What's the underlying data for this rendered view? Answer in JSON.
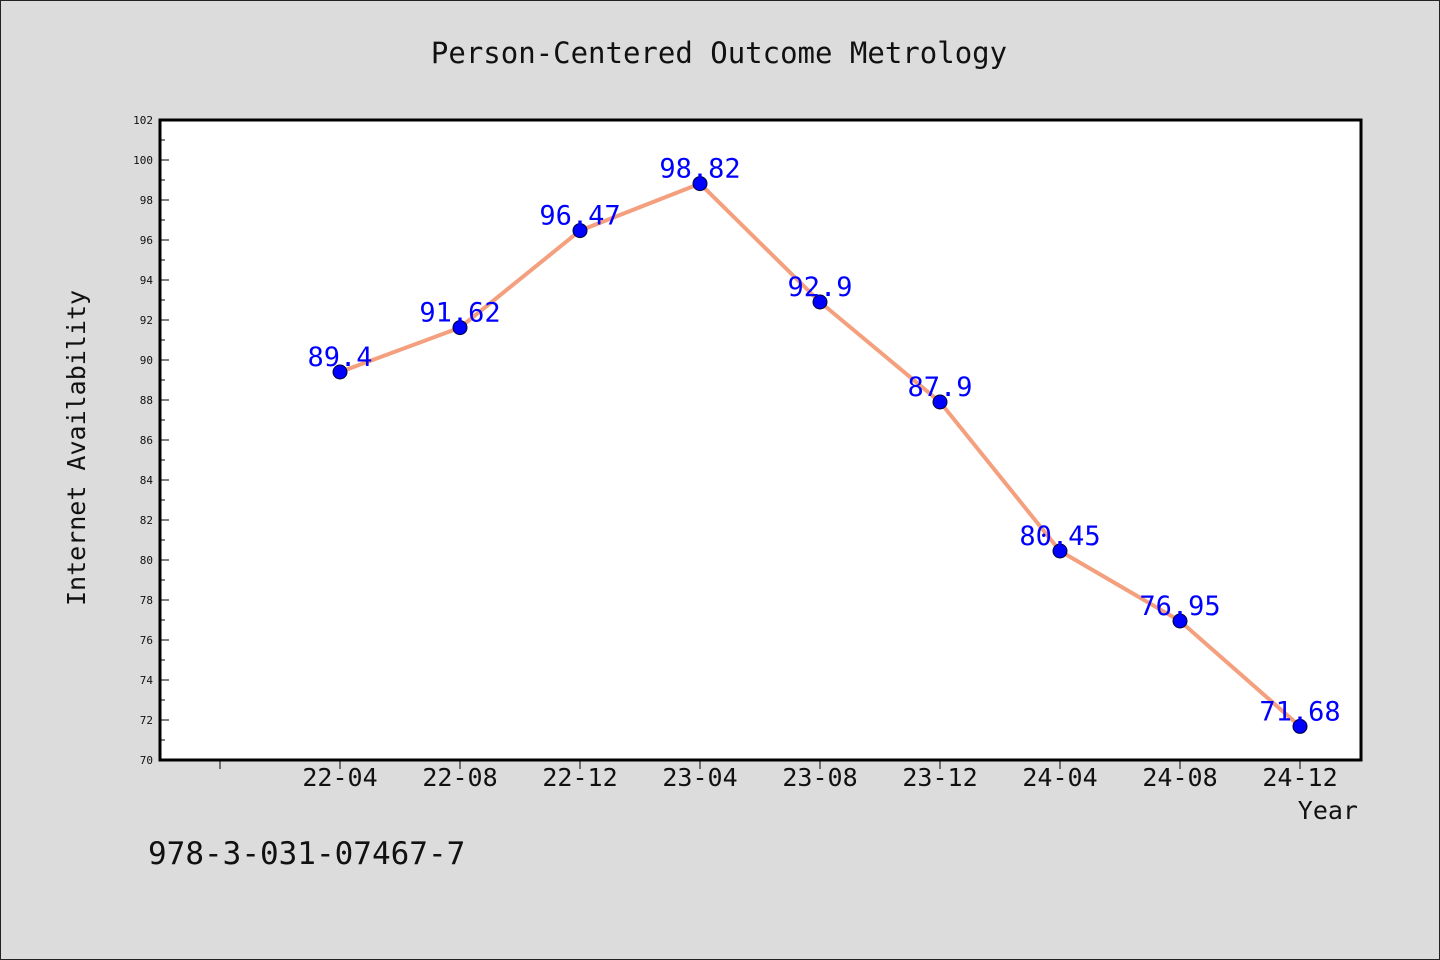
{
  "chart_data": {
    "type": "line",
    "title": "Person-Centered Outcome Metrology",
    "xlabel": "Year",
    "ylabel": "Internet Availability",
    "categories": [
      "22-04",
      "22-08",
      "22-12",
      "23-04",
      "23-08",
      "23-12",
      "24-04",
      "24-08",
      "24-12"
    ],
    "series": [
      {
        "values": [
          89.4,
          91.62,
          96.47,
          98.82,
          92.9,
          87.9,
          80.45,
          76.95,
          71.68
        ],
        "labels": [
          "89.4",
          "91.62",
          "96.47",
          "98.82",
          "92.9",
          "87.9",
          "80.45",
          "76.95",
          "71.68"
        ]
      }
    ],
    "ylim": [
      70,
      102
    ],
    "yticks": [
      70,
      72,
      74,
      76,
      78,
      80,
      82,
      84,
      86,
      88,
      90,
      92,
      94,
      96,
      98,
      100,
      102
    ],
    "grid": false,
    "line_color": "#f4a07e",
    "marker_color": "#0000ff",
    "label_color": "#0000ff"
  },
  "footer_text": "978-3-031-07467-7"
}
